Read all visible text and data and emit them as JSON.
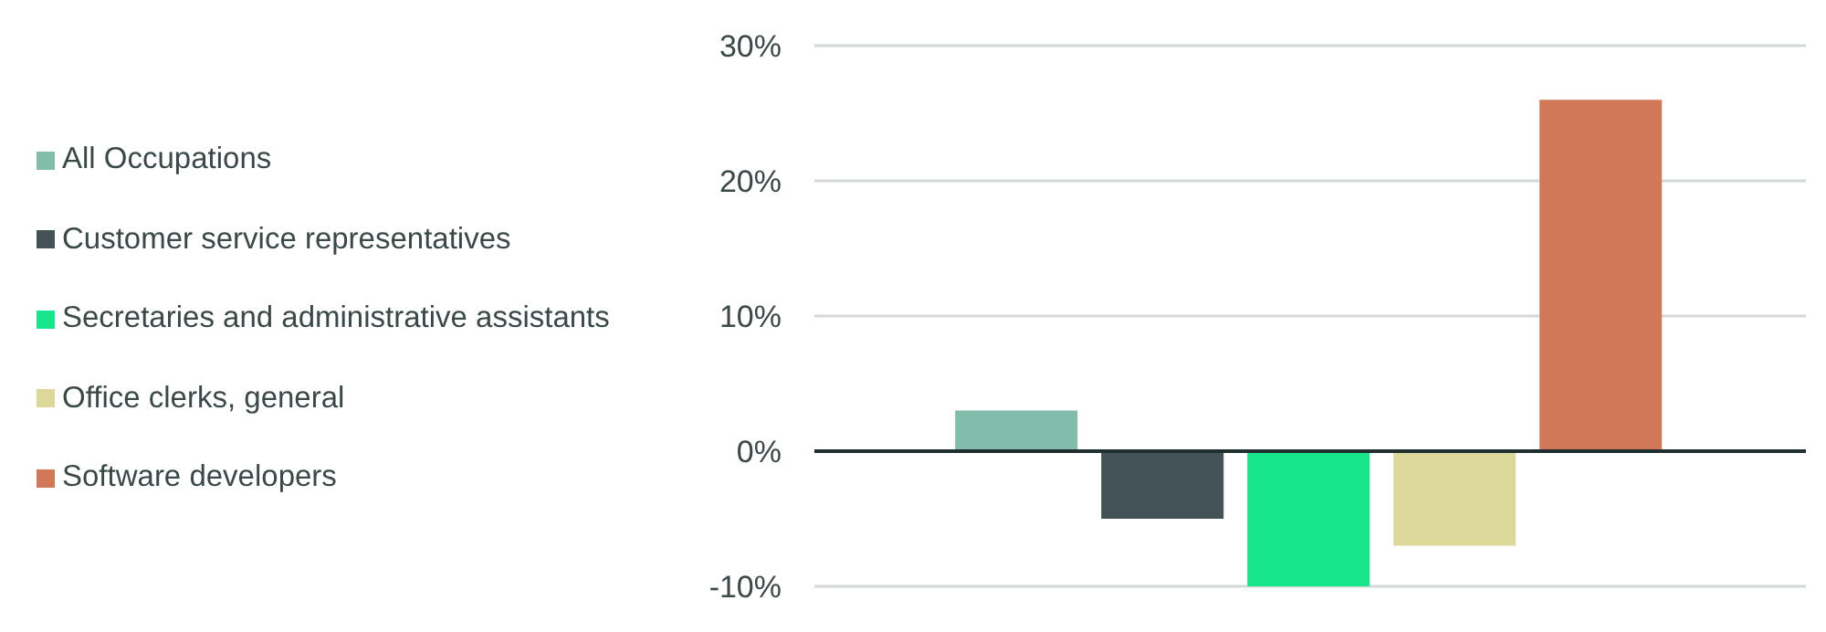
{
  "chart_data": {
    "type": "bar",
    "categories": [
      null
    ],
    "series": [
      {
        "name": "All Occupations",
        "color": "#82bcab",
        "values": [
          3
        ]
      },
      {
        "name": "Customer service representatives",
        "color": "#435254",
        "values": [
          -5
        ]
      },
      {
        "name": "Secretaries and administrative assistants",
        "color": "#17e68c",
        "values": [
          -10
        ]
      },
      {
        "name": "Office clerks, general",
        "color": "#dbd89a",
        "values": [
          -7
        ]
      },
      {
        "name": "Software developers",
        "color": "#d17858",
        "values": [
          26
        ]
      }
    ],
    "ylim": [
      -10,
      30
    ],
    "yticks": [
      {
        "value": -10,
        "label": "-10%"
      },
      {
        "value": 0,
        "label": "0%"
      },
      {
        "value": 10,
        "label": "10%"
      },
      {
        "value": 20,
        "label": "20%"
      },
      {
        "value": 30,
        "label": "30%"
      }
    ],
    "grid": "y",
    "legend": "left",
    "tick_labels": "y",
    "ref_lines": [
      {
        "axis": "y",
        "value": 0,
        "color": "#1f2e2e"
      }
    ]
  }
}
